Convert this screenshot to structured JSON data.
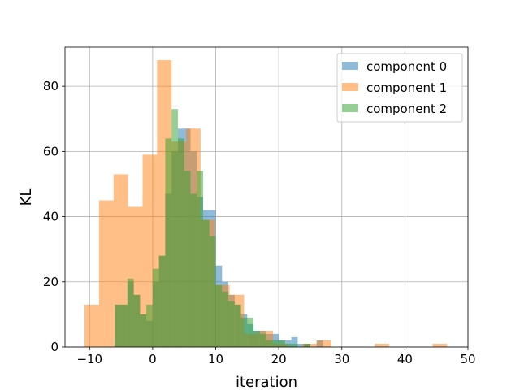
{
  "chart_data": {
    "type": "histogram",
    "title": "",
    "xlabel": "iteration",
    "ylabel": "KL",
    "xlim": [
      -13.9,
      50
    ],
    "ylim": [
      0,
      92
    ],
    "xticks": [
      -10,
      0,
      10,
      20,
      30,
      40,
      50
    ],
    "yticks": [
      0,
      20,
      40,
      60,
      80
    ],
    "grid": true,
    "legend_position": "top-right",
    "series": [
      {
        "name": "component 0",
        "color": "#1f77b4",
        "opacity": 0.5,
        "bin_edges": [
          -6,
          -5,
          -4,
          -3,
          -2,
          -1,
          0,
          1,
          2,
          3,
          4,
          5,
          6,
          7,
          8,
          9,
          10,
          11,
          12,
          13,
          14,
          15,
          16,
          17,
          18,
          19,
          20,
          21,
          22,
          23,
          24,
          25,
          26,
          27,
          28
        ],
        "counts": [
          13,
          13,
          20,
          16,
          10,
          8,
          20,
          28,
          47,
          60,
          67,
          67,
          60,
          46,
          42,
          42,
          25,
          20,
          16,
          13,
          10,
          7,
          5,
          5,
          4,
          4,
          2,
          2,
          3,
          1,
          1,
          0,
          2,
          0
        ]
      },
      {
        "name": "component 1",
        "color": "#ff7f0e",
        "opacity": 0.5,
        "bin_edges": [
          -10.8,
          -8.5,
          -6.2,
          -3.9,
          -1.6,
          0.7,
          3.0,
          5.3,
          7.6,
          9.9,
          12.2,
          14.5,
          16.8,
          19.1,
          21.4,
          23.7,
          26.0,
          28.3,
          30.6,
          32.9,
          35.2,
          37.5,
          39.8,
          42.1,
          44.4,
          46.7
        ],
        "counts": [
          13,
          45,
          53,
          43,
          59,
          88,
          63,
          67,
          39,
          19,
          16,
          4,
          5,
          1,
          0,
          1,
          2,
          0,
          0,
          0,
          1,
          0,
          0,
          0,
          1
        ]
      },
      {
        "name": "component 2",
        "color": "#2ca02c",
        "opacity": 0.5,
        "bin_edges": [
          -6,
          -5,
          -4,
          -3,
          -2,
          -1,
          0,
          1,
          2,
          3,
          4,
          5,
          6,
          7,
          8,
          9,
          10,
          11,
          12,
          13,
          14,
          15,
          16,
          17,
          18,
          19,
          20,
          21,
          22,
          23,
          24,
          25,
          26
        ],
        "counts": [
          13,
          13,
          21,
          16,
          10,
          13,
          24,
          28,
          64,
          73,
          64,
          54,
          47,
          54,
          39,
          34,
          19,
          17,
          14,
          13,
          9,
          9,
          5,
          4,
          2,
          2,
          2,
          1,
          1,
          0,
          1,
          0
        ]
      }
    ]
  }
}
